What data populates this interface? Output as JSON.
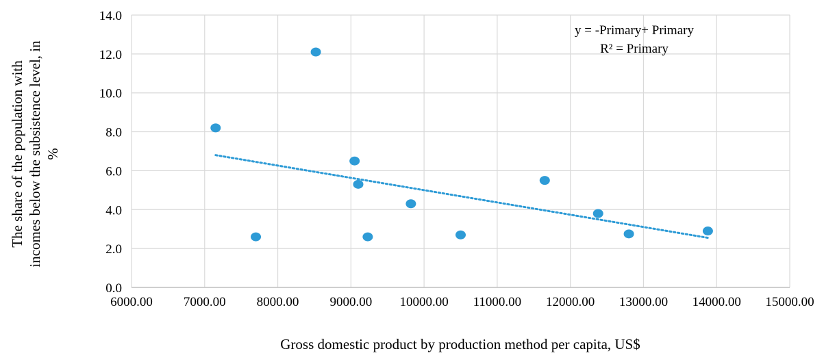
{
  "chart_data": {
    "type": "scatter",
    "title": "",
    "xlabel": "Gross domestic product by production method per capita, US$",
    "ylabel_lines": [
      "The share of the population with",
      "incomes below the subsistence level, in",
      "%"
    ],
    "xlim": [
      6000,
      15000
    ],
    "ylim": [
      0,
      14
    ],
    "x_ticks": [
      6000,
      7000,
      8000,
      9000,
      10000,
      11000,
      12000,
      13000,
      14000,
      15000
    ],
    "x_tick_labels": [
      "6000.00",
      "7000.00",
      "8000.00",
      "9000.00",
      "10000.00",
      "11000.00",
      "12000.00",
      "13000.00",
      "14000.00",
      "15000.00"
    ],
    "y_ticks": [
      0,
      2,
      4,
      6,
      8,
      10,
      12,
      14
    ],
    "y_tick_labels": [
      "0.0",
      "2.0",
      "4.0",
      "6.0",
      "8.0",
      "10.0",
      "12.0",
      "14.0"
    ],
    "grid": true,
    "points": [
      {
        "x": 7150,
        "y": 8.2
      },
      {
        "x": 7700,
        "y": 2.6
      },
      {
        "x": 8520,
        "y": 12.1
      },
      {
        "x": 9050,
        "y": 6.5
      },
      {
        "x": 9100,
        "y": 5.3
      },
      {
        "x": 9230,
        "y": 2.6
      },
      {
        "x": 9820,
        "y": 4.3
      },
      {
        "x": 10500,
        "y": 2.7
      },
      {
        "x": 11650,
        "y": 5.5
      },
      {
        "x": 12380,
        "y": 3.8
      },
      {
        "x": 12800,
        "y": 2.75
      },
      {
        "x": 13880,
        "y": 2.9
      }
    ],
    "trendline": {
      "style": "dotted",
      "x": [
        7150,
        13880
      ],
      "y": [
        6.8,
        2.55
      ]
    },
    "equation": {
      "line1": "y = -Primary+ Primary",
      "line2": "R² = Primary"
    },
    "colors": {
      "point": "#2E9BD6",
      "trendline": "#2E9BD6",
      "grid": "#D9D9D9",
      "axis": "#BFBFBF"
    }
  }
}
